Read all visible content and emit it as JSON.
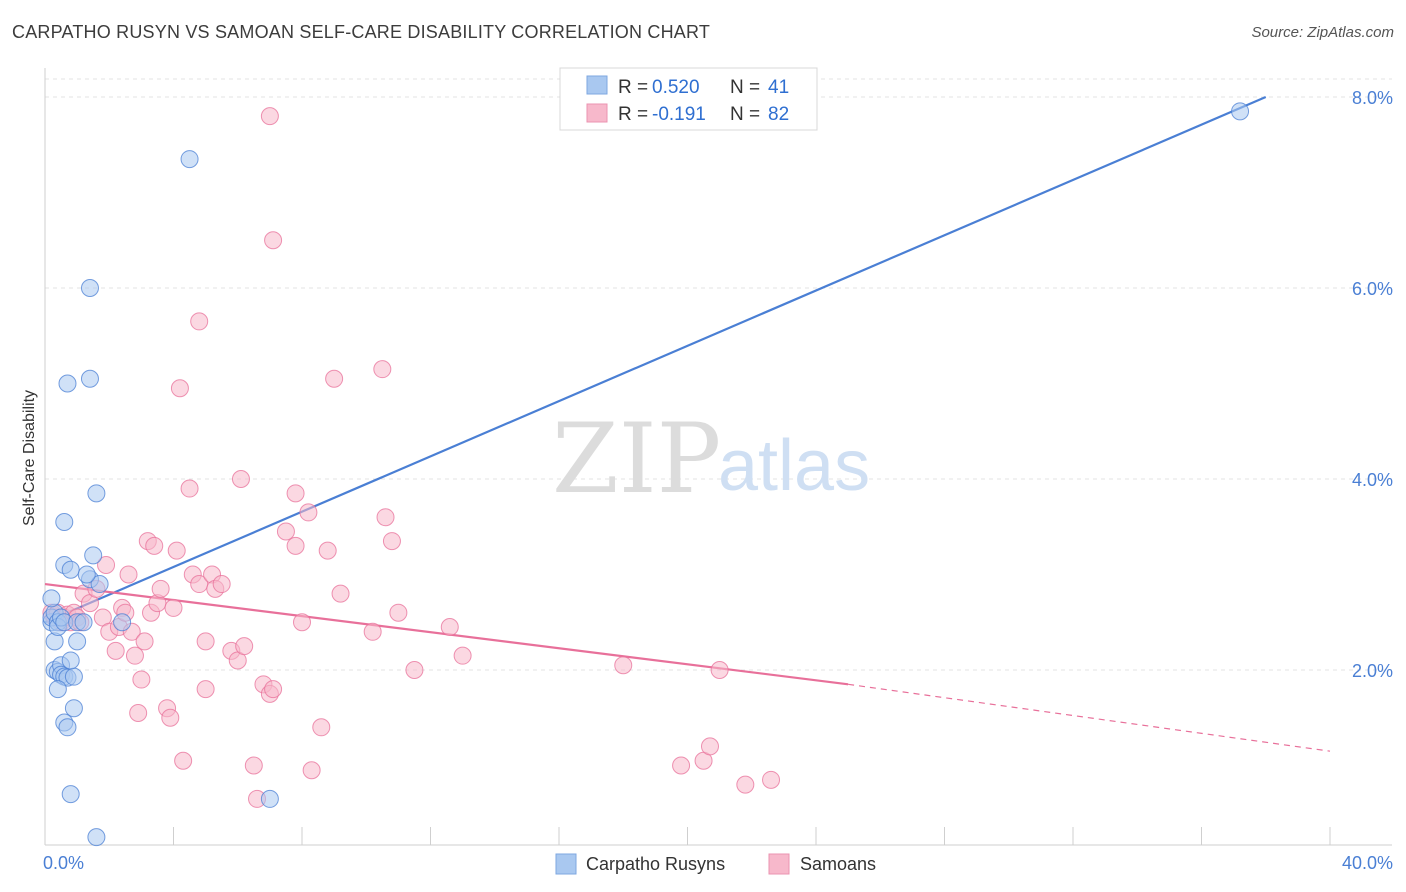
{
  "header": {
    "title": "CARPATHO RUSYN VS SAMOAN SELF-CARE DISABILITY CORRELATION CHART",
    "source": "Source: ZipAtlas.com"
  },
  "watermark": {
    "zip": "ZIP",
    "atlas": "atlas"
  },
  "legend": {
    "rows": [
      {
        "r_label": "R = ",
        "r_value": "0.520",
        "n_label": "N = ",
        "n_value": "41",
        "color": "#a9c8f0"
      },
      {
        "r_label": "R = ",
        "r_value": "-0.191",
        "n_label": "N = ",
        "n_value": "82",
        "color": "#f7b8cb"
      }
    ]
  },
  "bottom_legend": [
    "Carpatho Rusyns",
    "Samoans"
  ],
  "chart_data": {
    "type": "scatter",
    "title": "CARPATHO RUSYN VS SAMOAN SELF-CARE DISABILITY CORRELATION CHART",
    "xlabel": "",
    "ylabel": "Self-Care Disability",
    "xlim": [
      0,
      40
    ],
    "ylim": [
      0,
      8.2
    ],
    "x_tick_labels": [
      "0.0%",
      "40.0%"
    ],
    "y_ticks": [
      2,
      4,
      6,
      8
    ],
    "y_tick_labels": [
      "2.0%",
      "4.0%",
      "6.0%",
      "8.0%"
    ],
    "grid": true,
    "legend_position": "top-center",
    "series": [
      {
        "name": "Carpatho Rusyns",
        "color": "#4a7fd4",
        "fill": "#a9c8f0",
        "r": 0.52,
        "n": 41,
        "trend": {
          "x": [
            0,
            38
          ],
          "y": [
            2.5,
            8.0
          ],
          "dashed_after": null
        },
        "points": [
          [
            0.2,
            2.5
          ],
          [
            0.2,
            2.55
          ],
          [
            0.3,
            2.6
          ],
          [
            0.3,
            2.3
          ],
          [
            0.2,
            2.75
          ],
          [
            0.4,
            2.5
          ],
          [
            0.4,
            2.45
          ],
          [
            0.5,
            2.55
          ],
          [
            0.6,
            2.5
          ],
          [
            0.3,
            2.0
          ],
          [
            0.4,
            1.98
          ],
          [
            0.5,
            2.05
          ],
          [
            0.5,
            1.95
          ],
          [
            0.6,
            1.93
          ],
          [
            0.7,
            1.92
          ],
          [
            0.9,
            1.93
          ],
          [
            0.4,
            1.8
          ],
          [
            0.9,
            1.6
          ],
          [
            0.6,
            1.45
          ],
          [
            0.7,
            1.4
          ],
          [
            0.8,
            2.1
          ],
          [
            1.0,
            2.3
          ],
          [
            1.0,
            2.5
          ],
          [
            1.4,
            2.95
          ],
          [
            1.7,
            2.9
          ],
          [
            1.2,
            2.5
          ],
          [
            0.6,
            3.1
          ],
          [
            0.8,
            3.05
          ],
          [
            0.6,
            3.55
          ],
          [
            1.5,
            3.2
          ],
          [
            1.6,
            3.85
          ],
          [
            0.7,
            5.0
          ],
          [
            1.4,
            5.05
          ],
          [
            1.4,
            6.0
          ],
          [
            4.5,
            7.35
          ],
          [
            0.8,
            0.7
          ],
          [
            1.6,
            0.25
          ],
          [
            7.0,
            0.65
          ],
          [
            37.2,
            7.85
          ],
          [
            1.3,
            3.0
          ],
          [
            2.4,
            2.5
          ]
        ]
      },
      {
        "name": "Samoans",
        "color": "#e8709a",
        "fill": "#f7b8cb",
        "r": -0.191,
        "n": 82,
        "trend": {
          "x": [
            0,
            25,
            40
          ],
          "y": [
            2.9,
            1.85,
            1.15
          ],
          "dashed_after": 25
        },
        "points": [
          [
            0.2,
            2.6
          ],
          [
            0.3,
            2.55
          ],
          [
            0.4,
            2.6
          ],
          [
            0.5,
            2.5
          ],
          [
            0.6,
            2.55
          ],
          [
            0.7,
            2.58
          ],
          [
            0.8,
            2.5
          ],
          [
            0.9,
            2.6
          ],
          [
            1.0,
            2.55
          ],
          [
            1.1,
            2.5
          ],
          [
            1.2,
            2.8
          ],
          [
            1.4,
            2.7
          ],
          [
            1.6,
            2.85
          ],
          [
            1.8,
            2.55
          ],
          [
            1.9,
            3.1
          ],
          [
            2.0,
            2.4
          ],
          [
            2.2,
            2.2
          ],
          [
            2.3,
            2.45
          ],
          [
            2.4,
            2.65
          ],
          [
            2.5,
            2.6
          ],
          [
            2.6,
            3.0
          ],
          [
            2.7,
            2.4
          ],
          [
            2.8,
            2.15
          ],
          [
            2.9,
            1.55
          ],
          [
            3.0,
            1.9
          ],
          [
            3.1,
            2.3
          ],
          [
            3.2,
            3.35
          ],
          [
            3.3,
            2.6
          ],
          [
            3.4,
            3.3
          ],
          [
            3.5,
            2.7
          ],
          [
            3.6,
            2.85
          ],
          [
            3.8,
            1.6
          ],
          [
            3.9,
            1.5
          ],
          [
            4.0,
            2.65
          ],
          [
            4.1,
            3.25
          ],
          [
            4.2,
            4.95
          ],
          [
            4.3,
            1.05
          ],
          [
            4.5,
            3.9
          ],
          [
            4.6,
            3.0
          ],
          [
            4.8,
            2.9
          ],
          [
            4.8,
            5.65
          ],
          [
            5.0,
            2.3
          ],
          [
            5.0,
            1.8
          ],
          [
            5.2,
            3.0
          ],
          [
            5.3,
            2.85
          ],
          [
            5.5,
            2.9
          ],
          [
            5.8,
            2.2
          ],
          [
            6.0,
            2.1
          ],
          [
            6.1,
            4.0
          ],
          [
            6.2,
            2.25
          ],
          [
            6.5,
            1.0
          ],
          [
            6.6,
            0.65
          ],
          [
            6.8,
            1.85
          ],
          [
            7.0,
            1.75
          ],
          [
            7.1,
            1.8
          ],
          [
            7.0,
            7.8
          ],
          [
            7.1,
            6.5
          ],
          [
            7.5,
            3.45
          ],
          [
            7.8,
            3.3
          ],
          [
            7.8,
            3.85
          ],
          [
            8.0,
            2.5
          ],
          [
            8.2,
            3.65
          ],
          [
            8.3,
            0.95
          ],
          [
            8.6,
            1.4
          ],
          [
            8.8,
            3.25
          ],
          [
            9.2,
            2.8
          ],
          [
            9.0,
            5.05
          ],
          [
            10.2,
            2.4
          ],
          [
            10.5,
            5.15
          ],
          [
            10.6,
            3.6
          ],
          [
            10.8,
            3.35
          ],
          [
            11.0,
            2.6
          ],
          [
            11.5,
            2.0
          ],
          [
            12.6,
            2.45
          ],
          [
            13.0,
            2.15
          ],
          [
            18.0,
            2.05
          ],
          [
            19.8,
            1.0
          ],
          [
            20.5,
            1.05
          ],
          [
            20.7,
            1.2
          ],
          [
            21.8,
            0.8
          ],
          [
            22.6,
            0.85
          ],
          [
            21.0,
            2.0
          ]
        ]
      }
    ]
  }
}
